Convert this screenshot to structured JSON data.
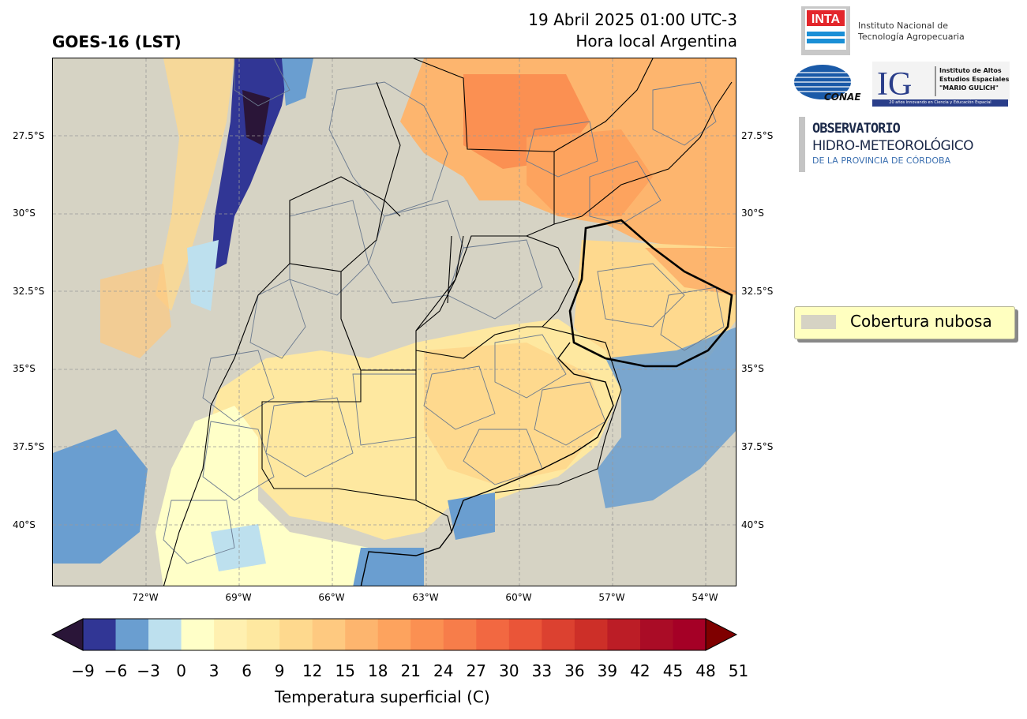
{
  "header": {
    "title": "GOES-16 (LST)",
    "datetime": "19 Abril 2025 01:00 UTC-3",
    "subtitle": "Hora local Argentina"
  },
  "logos": {
    "inta_mark": "INTA",
    "inta_line1": "Instituto Nacional de",
    "inta_line2": "Tecnología Agropecuaria",
    "conae": "CONAE",
    "ig_mark": "IG",
    "ig_line1": "Instituto de Altos",
    "ig_line2": "Estudios Espaciales",
    "ig_line3": "\"MARIO GULICH\"",
    "ig_footer": "20 años innovando en Ciencia y Educación Espacial",
    "obs_line1": "OBSERVATORIO",
    "obs_line2": "HIDRO-METEOROLÓGICO",
    "obs_line3": "DE LA PROVINCIA DE CÓRDOBA"
  },
  "map": {
    "lat_labels": [
      "27.5°S",
      "30°S",
      "32.5°S",
      "35°S",
      "37.5°S",
      "40°S"
    ],
    "lon_labels": [
      "72°W",
      "69°W",
      "66°W",
      "63°W",
      "60°W",
      "57°W",
      "54°W"
    ],
    "cloud_color": "#d6d3c4",
    "gridlines": true
  },
  "legend": {
    "label": "Cobertura nubosa",
    "swatch_color": "#d6d3c4"
  },
  "colorbar": {
    "label": "Temperatura superficial (C)",
    "ticks": [
      "−9",
      "−6",
      "−3",
      "0",
      "3",
      "6",
      "9",
      "12",
      "15",
      "18",
      "21",
      "24",
      "27",
      "30",
      "33",
      "36",
      "39",
      "42",
      "45",
      "48",
      "51"
    ],
    "colors": [
      "#313695",
      "#6a9ed0",
      "#bde0ee",
      "#ffffc8",
      "#fff0b0",
      "#fee8a0",
      "#fed98e",
      "#fec980",
      "#fdb56e",
      "#fda35e",
      "#fb9052",
      "#f77d4a",
      "#f26841",
      "#ea5538",
      "#dc4130",
      "#cd2f28",
      "#bc1d26",
      "#aa0c26",
      "#a50026"
    ],
    "under_color": "#2a1538",
    "over_color": "#7f0000"
  }
}
